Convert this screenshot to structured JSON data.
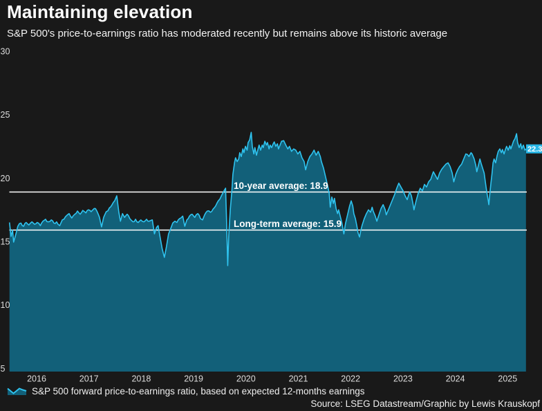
{
  "header": {
    "title": "Maintaining elevation",
    "subtitle": "S&P 500's price-to-earnings ratio has moderated recently but remains above its historic average"
  },
  "legend": {
    "swatch_icon": "area-chart-icon",
    "label": "S&P 500 forward price-to-earnings ratio, based on expected 12-months earnings"
  },
  "source": {
    "text": "Source: LSEG Datastream/Graphic by Lewis Krauskopf"
  },
  "chart_data": {
    "type": "area",
    "title": "Maintaining elevation",
    "series_name": "S&P 500 forward price-to-earnings ratio, based on expected 12-months earnings",
    "xlabel": "",
    "ylabel": "",
    "grid": false,
    "x_ticks": [
      "2016",
      "2017",
      "2018",
      "2019",
      "2020",
      "2021",
      "2022",
      "2023",
      "2024",
      "2025"
    ],
    "y_ticks": [
      5,
      10,
      15,
      20,
      25,
      30
    ],
    "ylim": [
      5,
      30
    ],
    "xlim_years": [
      2015.98,
      2025.85
    ],
    "reference_lines": [
      {
        "label": "10-year average: 18.9",
        "value": 18.9
      },
      {
        "label": "Long-term average: 15.9",
        "value": 15.9
      }
    ],
    "last_value": 22.3,
    "last_value_label": "22.3",
    "colors": {
      "line": "#2fc3ef",
      "fill": "#126079",
      "label_bg": "#28b7e7",
      "label_text": "#ffffff",
      "reference": "#ffffff",
      "tick_text": "#dcdcdc",
      "background": "#191919"
    },
    "points": [
      [
        2015.98,
        16.5
      ],
      [
        2016.01,
        15.4
      ],
      [
        2016.04,
        15.9
      ],
      [
        2016.06,
        14.95
      ],
      [
        2016.1,
        15.55
      ],
      [
        2016.14,
        16.2
      ],
      [
        2016.2,
        16.45
      ],
      [
        2016.25,
        16.2
      ],
      [
        2016.3,
        16.5
      ],
      [
        2016.35,
        16.3
      ],
      [
        2016.41,
        16.55
      ],
      [
        2016.46,
        16.35
      ],
      [
        2016.51,
        16.5
      ],
      [
        2016.57,
        16.25
      ],
      [
        2016.62,
        16.6
      ],
      [
        2016.67,
        16.75
      ],
      [
        2016.72,
        16.55
      ],
      [
        2016.78,
        16.7
      ],
      [
        2016.83,
        16.45
      ],
      [
        2016.88,
        16.55
      ],
      [
        2016.94,
        16.25
      ],
      [
        2016.99,
        16.7
      ],
      [
        2017.05,
        16.95
      ],
      [
        2017.12,
        17.2
      ],
      [
        2017.17,
        16.85
      ],
      [
        2017.23,
        17.15
      ],
      [
        2017.28,
        17.4
      ],
      [
        2017.33,
        17.15
      ],
      [
        2017.38,
        17.45
      ],
      [
        2017.44,
        17.25
      ],
      [
        2017.49,
        17.5
      ],
      [
        2017.54,
        17.35
      ],
      [
        2017.6,
        17.6
      ],
      [
        2017.65,
        17.4
      ],
      [
        2017.7,
        16.9
      ],
      [
        2017.74,
        16.15
      ],
      [
        2017.78,
        16.9
      ],
      [
        2017.83,
        17.35
      ],
      [
        2017.89,
        17.65
      ],
      [
        2017.94,
        17.9
      ],
      [
        2017.99,
        18.2
      ],
      [
        2018.03,
        18.6
      ],
      [
        2018.07,
        17.3
      ],
      [
        2018.1,
        16.6
      ],
      [
        2018.14,
        17.2
      ],
      [
        2018.18,
        16.9
      ],
      [
        2018.23,
        17.15
      ],
      [
        2018.28,
        16.8
      ],
      [
        2018.34,
        16.55
      ],
      [
        2018.39,
        16.75
      ],
      [
        2018.44,
        16.5
      ],
      [
        2018.49,
        16.7
      ],
      [
        2018.55,
        16.55
      ],
      [
        2018.6,
        16.75
      ],
      [
        2018.65,
        16.6
      ],
      [
        2018.71,
        16.7
      ],
      [
        2018.75,
        15.6
      ],
      [
        2018.79,
        16.1
      ],
      [
        2018.82,
        16.25
      ],
      [
        2018.86,
        15.3
      ],
      [
        2018.9,
        14.4
      ],
      [
        2018.94,
        13.75
      ],
      [
        2018.98,
        14.6
      ],
      [
        2019.02,
        15.6
      ],
      [
        2019.06,
        16.0
      ],
      [
        2019.1,
        16.45
      ],
      [
        2019.14,
        16.6
      ],
      [
        2019.18,
        16.5
      ],
      [
        2019.23,
        16.8
      ],
      [
        2019.29,
        17.0
      ],
      [
        2019.33,
        16.2
      ],
      [
        2019.37,
        16.7
      ],
      [
        2019.42,
        17.0
      ],
      [
        2019.47,
        17.15
      ],
      [
        2019.52,
        16.9
      ],
      [
        2019.58,
        17.2
      ],
      [
        2019.63,
        16.8
      ],
      [
        2019.67,
        16.7
      ],
      [
        2019.71,
        17.1
      ],
      [
        2019.76,
        17.4
      ],
      [
        2019.82,
        17.3
      ],
      [
        2019.87,
        17.55
      ],
      [
        2019.92,
        17.8
      ],
      [
        2019.97,
        18.2
      ],
      [
        2020.03,
        18.6
      ],
      [
        2020.08,
        19.0
      ],
      [
        2020.11,
        19.2
      ],
      [
        2020.13,
        16.5
      ],
      [
        2020.15,
        13.1
      ],
      [
        2020.17,
        15.5
      ],
      [
        2020.2,
        17.5
      ],
      [
        2020.23,
        19.0
      ],
      [
        2020.25,
        20.3
      ],
      [
        2020.28,
        21.2
      ],
      [
        2020.3,
        21.6
      ],
      [
        2020.33,
        21.3
      ],
      [
        2020.36,
        21.5
      ],
      [
        2020.38,
        22.0
      ],
      [
        2020.41,
        21.7
      ],
      [
        2020.44,
        22.3
      ],
      [
        2020.46,
        22.0
      ],
      [
        2020.49,
        22.5
      ],
      [
        2020.52,
        22.2
      ],
      [
        2020.54,
        22.8
      ],
      [
        2020.57,
        23.0
      ],
      [
        2020.6,
        23.6
      ],
      [
        2020.62,
        22.5
      ],
      [
        2020.65,
        21.9
      ],
      [
        2020.67,
        22.4
      ],
      [
        2020.7,
        21.8
      ],
      [
        2020.73,
        22.3
      ],
      [
        2020.75,
        22.6
      ],
      [
        2020.78,
        22.2
      ],
      [
        2020.81,
        22.6
      ],
      [
        2020.83,
        22.4
      ],
      [
        2020.86,
        22.9
      ],
      [
        2020.89,
        22.6
      ],
      [
        2020.91,
        22.8
      ],
      [
        2020.94,
        22.3
      ],
      [
        2020.96,
        22.6
      ],
      [
        2020.99,
        22.4
      ],
      [
        2021.02,
        22.7
      ],
      [
        2021.04,
        22.85
      ],
      [
        2021.07,
        22.5
      ],
      [
        2021.1,
        22.7
      ],
      [
        2021.12,
        22.3
      ],
      [
        2021.15,
        22.6
      ],
      [
        2021.18,
        22.9
      ],
      [
        2021.22,
        22.95
      ],
      [
        2021.26,
        22.6
      ],
      [
        2021.3,
        22.3
      ],
      [
        2021.33,
        22.5
      ],
      [
        2021.37,
        22.1
      ],
      [
        2021.41,
        22.3
      ],
      [
        2021.45,
        22.2
      ],
      [
        2021.49,
        21.9
      ],
      [
        2021.53,
        22.1
      ],
      [
        2021.57,
        21.6
      ],
      [
        2021.61,
        21.3
      ],
      [
        2021.64,
        20.65
      ],
      [
        2021.68,
        21.3
      ],
      [
        2021.72,
        21.7
      ],
      [
        2021.76,
        21.9
      ],
      [
        2021.8,
        22.2
      ],
      [
        2021.84,
        21.8
      ],
      [
        2021.88,
        22.1
      ],
      [
        2021.92,
        21.7
      ],
      [
        2021.94,
        21.3
      ],
      [
        2021.98,
        20.8
      ],
      [
        2022.02,
        20.1
      ],
      [
        2022.06,
        19.4
      ],
      [
        2022.09,
        18.8
      ],
      [
        2022.11,
        17.7
      ],
      [
        2022.14,
        18.5
      ],
      [
        2022.17,
        18.0
      ],
      [
        2022.19,
        18.4
      ],
      [
        2022.22,
        17.6
      ],
      [
        2022.25,
        17.2
      ],
      [
        2022.27,
        17.5
      ],
      [
        2022.3,
        17.0
      ],
      [
        2022.33,
        16.5
      ],
      [
        2022.37,
        15.6
      ],
      [
        2022.4,
        16.4
      ],
      [
        2022.44,
        17.1
      ],
      [
        2022.48,
        17.8
      ],
      [
        2022.51,
        18.2
      ],
      [
        2022.54,
        17.8
      ],
      [
        2022.56,
        17.2
      ],
      [
        2022.59,
        16.8
      ],
      [
        2022.62,
        16.2
      ],
      [
        2022.64,
        15.7
      ],
      [
        2022.67,
        15.35
      ],
      [
        2022.69,
        15.8
      ],
      [
        2022.72,
        16.3
      ],
      [
        2022.76,
        16.8
      ],
      [
        2022.8,
        17.2
      ],
      [
        2022.84,
        17.5
      ],
      [
        2022.88,
        17.3
      ],
      [
        2022.91,
        17.7
      ],
      [
        2022.93,
        17.4
      ],
      [
        2022.97,
        17.0
      ],
      [
        2023.0,
        16.6
      ],
      [
        2023.04,
        17.1
      ],
      [
        2023.08,
        17.6
      ],
      [
        2023.12,
        17.9
      ],
      [
        2023.16,
        17.5
      ],
      [
        2023.18,
        17.1
      ],
      [
        2023.22,
        17.5
      ],
      [
        2023.26,
        17.9
      ],
      [
        2023.3,
        18.3
      ],
      [
        2023.34,
        18.7
      ],
      [
        2023.38,
        19.2
      ],
      [
        2023.42,
        19.6
      ],
      [
        2023.46,
        19.3
      ],
      [
        2023.5,
        19.0
      ],
      [
        2023.54,
        18.6
      ],
      [
        2023.58,
        18.3
      ],
      [
        2023.61,
        18.7
      ],
      [
        2023.63,
        18.9
      ],
      [
        2023.66,
        18.6
      ],
      [
        2023.69,
        18.0
      ],
      [
        2023.71,
        17.5
      ],
      [
        2023.75,
        18.2
      ],
      [
        2023.79,
        18.8
      ],
      [
        2023.83,
        19.2
      ],
      [
        2023.87,
        19.0
      ],
      [
        2023.91,
        19.5
      ],
      [
        2023.95,
        19.3
      ],
      [
        2023.99,
        19.7
      ],
      [
        2024.03,
        19.9
      ],
      [
        2024.08,
        20.5
      ],
      [
        2024.12,
        20.2
      ],
      [
        2024.16,
        19.9
      ],
      [
        2024.2,
        20.4
      ],
      [
        2024.24,
        20.7
      ],
      [
        2024.28,
        20.9
      ],
      [
        2024.32,
        21.1
      ],
      [
        2024.36,
        21.2
      ],
      [
        2024.4,
        20.9
      ],
      [
        2024.44,
        20.4
      ],
      [
        2024.47,
        19.7
      ],
      [
        2024.51,
        20.3
      ],
      [
        2024.54,
        20.6
      ],
      [
        2024.58,
        20.9
      ],
      [
        2024.62,
        21.1
      ],
      [
        2024.65,
        21.4
      ],
      [
        2024.7,
        21.9
      ],
      [
        2024.76,
        21.7
      ],
      [
        2024.8,
        22.0
      ],
      [
        2024.82,
        21.9
      ],
      [
        2024.86,
        21.5
      ],
      [
        2024.89,
        21.0
      ],
      [
        2024.91,
        20.5
      ],
      [
        2024.94,
        21.0
      ],
      [
        2024.97,
        21.5
      ],
      [
        2024.99,
        21.2
      ],
      [
        2025.02,
        20.8
      ],
      [
        2025.05,
        20.4
      ],
      [
        2025.07,
        19.8
      ],
      [
        2025.1,
        18.9
      ],
      [
        2025.13,
        18.2
      ],
      [
        2025.14,
        17.9
      ],
      [
        2025.16,
        18.8
      ],
      [
        2025.18,
        19.6
      ],
      [
        2025.2,
        20.3
      ],
      [
        2025.22,
        21.2
      ],
      [
        2025.24,
        21.5
      ],
      [
        2025.27,
        21.2
      ],
      [
        2025.3,
        21.8
      ],
      [
        2025.32,
        22.1
      ],
      [
        2025.35,
        22.3
      ],
      [
        2025.38,
        22.0
      ],
      [
        2025.4,
        22.25
      ],
      [
        2025.43,
        21.9
      ],
      [
        2025.46,
        22.3
      ],
      [
        2025.48,
        22.5
      ],
      [
        2025.51,
        22.2
      ],
      [
        2025.54,
        22.55
      ],
      [
        2025.56,
        22.3
      ],
      [
        2025.59,
        22.65
      ],
      [
        2025.61,
        22.9
      ],
      [
        2025.64,
        23.1
      ],
      [
        2025.67,
        23.5
      ],
      [
        2025.69,
        22.8
      ],
      [
        2025.72,
        22.4
      ],
      [
        2025.75,
        22.7
      ],
      [
        2025.77,
        22.3
      ],
      [
        2025.8,
        22.6
      ],
      [
        2025.83,
        22.2
      ],
      [
        2025.85,
        22.3
      ]
    ]
  }
}
